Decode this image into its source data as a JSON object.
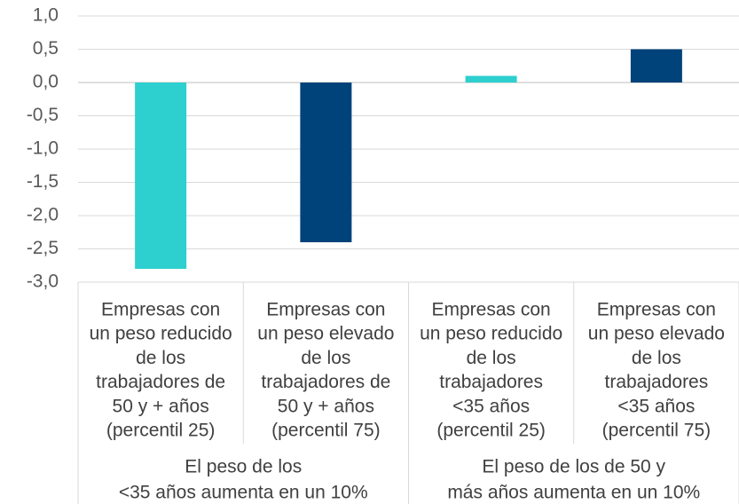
{
  "chart_data": {
    "type": "bar",
    "categories": [
      [
        "Empresas con",
        "un peso reducido",
        "de los",
        "trabajadores de",
        "50 y + años",
        "(percentil 25)"
      ],
      [
        "Empresas con",
        "un peso elevado",
        "de los",
        "trabajadores de",
        "50 y + años",
        "(percentil 75)"
      ],
      [
        "Empresas con",
        "un peso reducido",
        "de los",
        "trabajadores",
        "<35 años",
        "(percentil 25)"
      ],
      [
        "Empresas con",
        "un peso elevado",
        "de los",
        "trabajadores",
        "<35 años",
        "(percentil 75)"
      ]
    ],
    "groups": [
      [
        "El peso de los",
        "<35 años aumenta en un 10%"
      ],
      [
        "El peso de los de 50 y",
        "más años aumenta en un 10%"
      ]
    ],
    "values": [
      -2.8,
      -2.4,
      0.1,
      0.5
    ],
    "colors": [
      "#2ecfcf",
      "#00427a",
      "#2ecfcf",
      "#00427a"
    ],
    "ylim": [
      -3.0,
      1.0
    ],
    "yticks": [
      {
        "value": 1.0,
        "label": "1,0"
      },
      {
        "value": 0.5,
        "label": "0,5"
      },
      {
        "value": 0.0,
        "label": "0,0"
      },
      {
        "value": -0.5,
        "label": "-0,5"
      },
      {
        "value": -1.0,
        "label": "-1,0"
      },
      {
        "value": -1.5,
        "label": "-1,5"
      },
      {
        "value": -2.0,
        "label": "-2,0"
      },
      {
        "value": -2.5,
        "label": "-2,5"
      },
      {
        "value": -3.0,
        "label": "-3,0"
      }
    ],
    "grid": true
  }
}
